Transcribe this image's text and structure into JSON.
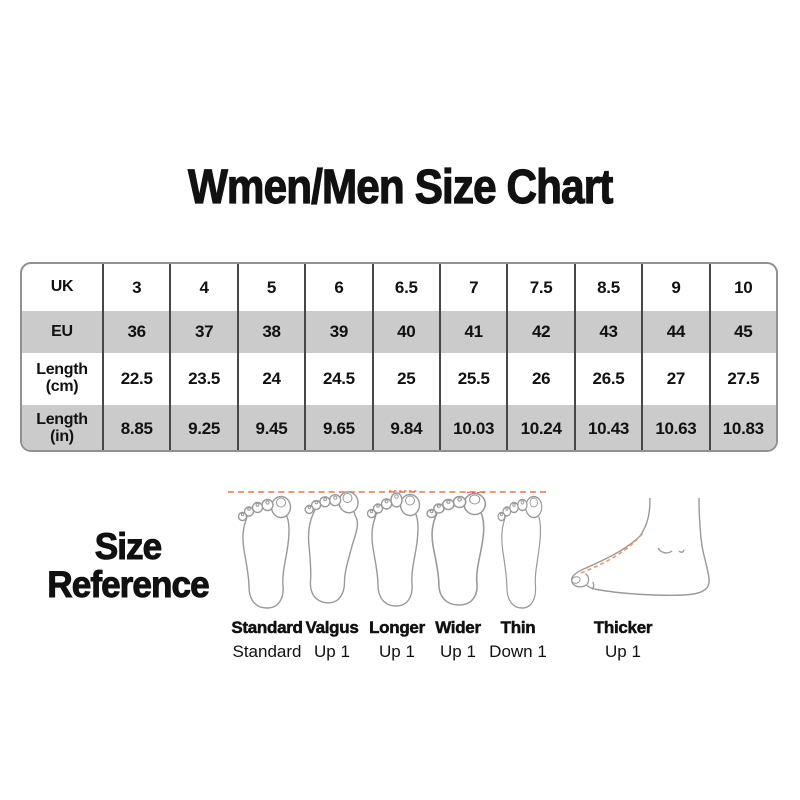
{
  "title": "Wmen/Men Size Chart",
  "size_chart": {
    "rows": [
      {
        "label": "UK",
        "values": [
          "3",
          "4",
          "5",
          "6",
          "6.5",
          "7",
          "7.5",
          "8.5",
          "9",
          "10"
        ]
      },
      {
        "label": "EU",
        "values": [
          "36",
          "37",
          "38",
          "39",
          "40",
          "41",
          "42",
          "43",
          "44",
          "45"
        ]
      },
      {
        "label": "Length (cm)",
        "values": [
          "22.5",
          "23.5",
          "24",
          "24.5",
          "25",
          "25.5",
          "26",
          "26.5",
          "27",
          "27.5"
        ]
      },
      {
        "label": "Length (in)",
        "values": [
          "8.85",
          "9.25",
          "9.45",
          "9.65",
          "9.84",
          "10.03",
          "10.24",
          "10.43",
          "10.63",
          "10.83"
        ]
      }
    ]
  },
  "size_reference": {
    "heading": [
      "Size",
      "Reference"
    ],
    "items": [
      {
        "type": "Standard",
        "adjustment": "Standard"
      },
      {
        "type": "Valgus",
        "adjustment": "Up 1"
      },
      {
        "type": "Longer",
        "adjustment": "Up 1"
      },
      {
        "type": "Wider",
        "adjustment": "Up 1"
      },
      {
        "type": "Thin",
        "adjustment": "Down 1"
      },
      {
        "type": "Thicker",
        "adjustment": "Up 1"
      }
    ]
  },
  "chart_data": {
    "type": "table",
    "title": "Wmen/Men Size Chart",
    "row_headers": [
      "UK",
      "EU",
      "Length (cm)",
      "Length (in)"
    ],
    "rows": [
      [
        "3",
        "4",
        "5",
        "6",
        "6.5",
        "7",
        "7.5",
        "8.5",
        "9",
        "10"
      ],
      [
        "36",
        "37",
        "38",
        "39",
        "40",
        "41",
        "42",
        "43",
        "44",
        "45"
      ],
      [
        "22.5",
        "23.5",
        "24",
        "24.5",
        "25",
        "25.5",
        "26",
        "26.5",
        "27",
        "27.5"
      ],
      [
        "8.85",
        "9.25",
        "9.45",
        "9.65",
        "9.84",
        "10.03",
        "10.24",
        "10.43",
        "10.63",
        "10.83"
      ]
    ]
  },
  "colors": {
    "background": "#ffffff",
    "text": "#111111",
    "table_alt_row_bg": "#cbcbcb",
    "table_grid_line": "#474747",
    "table_outer_border": "#909090",
    "foot_outline": "#999999",
    "guide_line_orange": "#ed9a73",
    "mark_red": "#e06050"
  }
}
